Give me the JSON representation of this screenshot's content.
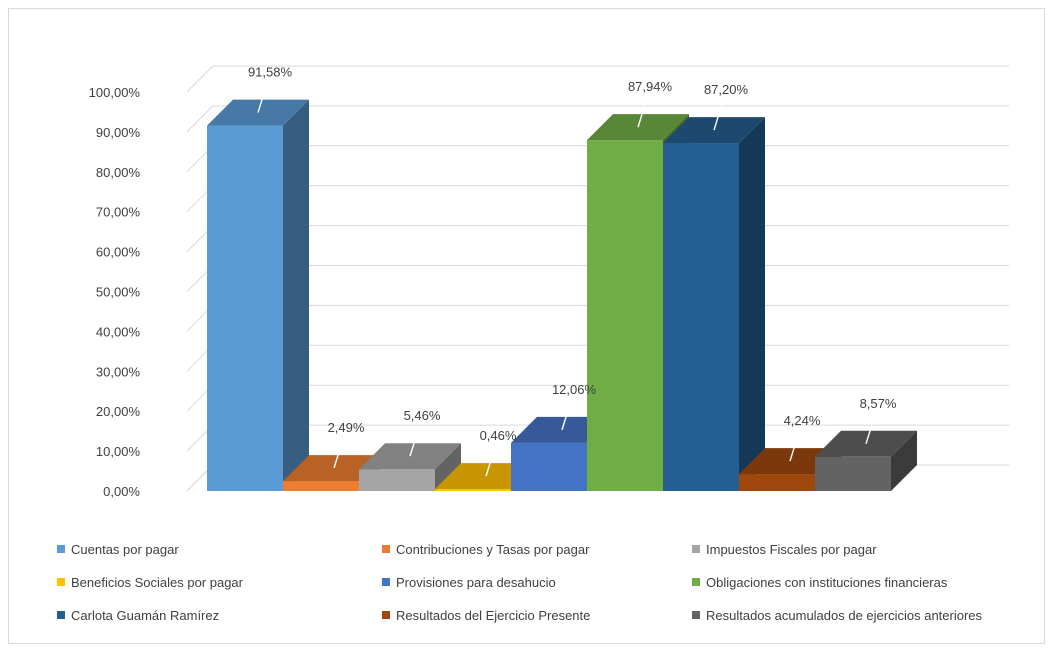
{
  "chart_data": {
    "type": "bar",
    "title": "",
    "xlabel": "",
    "ylabel": "",
    "ylim": [
      0,
      100
    ],
    "yticks": [
      "0,00%",
      "10,00%",
      "20,00%",
      "30,00%",
      "40,00%",
      "50,00%",
      "60,00%",
      "70,00%",
      "80,00%",
      "90,00%",
      "100,00%"
    ],
    "grid": true,
    "legend_position": "bottom",
    "categories": [
      "Cuentas por pagar",
      "Contribuciones y Tasas por pagar",
      "Impuestos Fiscales por pagar",
      "Beneficios Sociales por pagar",
      "Provisiones para desahucio",
      "Obligaciones con instituciones financieras",
      "Carlota Guamán Ramírez",
      "Resultados del Ejercicio Presente",
      "Resultados acumulados de ejercicios anteriores"
    ],
    "values": [
      91.58,
      2.49,
      5.46,
      0.46,
      12.06,
      87.94,
      87.2,
      4.24,
      8.57
    ],
    "data_labels": [
      "91,58%",
      "2,49%",
      "5,46%",
      "0,46%",
      "12,06%",
      "87,94%",
      "87,20%",
      "4,24%",
      "8,57%"
    ],
    "colors": [
      "#5b9bd5",
      "#ed7d31",
      "#a5a5a5",
      "#ffc000",
      "#4472c4",
      "#70ad47",
      "#255e91",
      "#9e480e",
      "#636363"
    ]
  }
}
